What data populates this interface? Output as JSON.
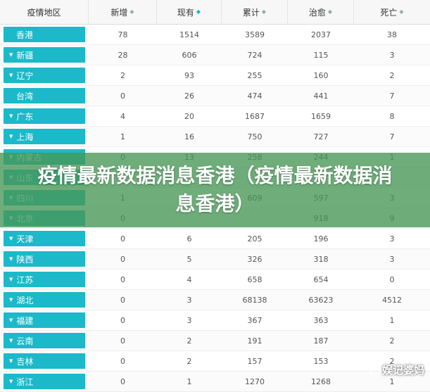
{
  "headers": [
    {
      "label": "疫情地区",
      "sort": ""
    },
    {
      "label": "新增",
      "sort": "◆"
    },
    {
      "label": "现有",
      "sort": "◆"
    },
    {
      "label": "累计",
      "sort": "◆"
    },
    {
      "label": "治愈",
      "sort": "◆"
    },
    {
      "label": "死亡",
      "sort": "◆"
    }
  ],
  "rows": [
    {
      "region": "香港",
      "arrow": "",
      "new": "78",
      "current": "1514",
      "total": "3589",
      "cured": "2037",
      "deaths": "38"
    },
    {
      "region": "新疆",
      "arrow": "▼",
      "new": "28",
      "current": "606",
      "total": "724",
      "cured": "115",
      "deaths": "3"
    },
    {
      "region": "辽宁",
      "arrow": "▼",
      "new": "2",
      "current": "93",
      "total": "255",
      "cured": "160",
      "deaths": "2"
    },
    {
      "region": "台湾",
      "arrow": "",
      "new": "0",
      "current": "26",
      "total": "474",
      "cured": "441",
      "deaths": "7"
    },
    {
      "region": "广东",
      "arrow": "▼",
      "new": "4",
      "current": "20",
      "total": "1687",
      "cured": "1659",
      "deaths": "8"
    },
    {
      "region": "上海",
      "arrow": "▼",
      "new": "1",
      "current": "16",
      "total": "750",
      "cured": "727",
      "deaths": "7"
    },
    {
      "region": "内蒙古",
      "arrow": "▼",
      "new": "0",
      "current": "13",
      "total": "258",
      "cured": "244",
      "deaths": "1"
    },
    {
      "region": "山东",
      "arrow": "▼",
      "new": "",
      "current": "",
      "total": "",
      "cured": "",
      "deaths": ""
    },
    {
      "region": "四川",
      "arrow": "▼",
      "new": "1",
      "current": "9",
      "total": "609",
      "cured": "597",
      "deaths": "3"
    },
    {
      "region": "北京",
      "arrow": "▼",
      "new": "0",
      "current": "",
      "total": "",
      "cured": "918",
      "deaths": "9"
    },
    {
      "region": "天津",
      "arrow": "▼",
      "new": "0",
      "current": "6",
      "total": "205",
      "cured": "196",
      "deaths": "3"
    },
    {
      "region": "陕西",
      "arrow": "▼",
      "new": "0",
      "current": "5",
      "total": "326",
      "cured": "318",
      "deaths": "3"
    },
    {
      "region": "江苏",
      "arrow": "▼",
      "new": "0",
      "current": "4",
      "total": "658",
      "cured": "654",
      "deaths": "0"
    },
    {
      "region": "湖北",
      "arrow": "▼",
      "new": "0",
      "current": "3",
      "total": "68138",
      "cured": "63623",
      "deaths": "4512"
    },
    {
      "region": "福建",
      "arrow": "▼",
      "new": "0",
      "current": "3",
      "total": "367",
      "cured": "363",
      "deaths": "1"
    },
    {
      "region": "云南",
      "arrow": "▼",
      "new": "0",
      "current": "2",
      "total": "191",
      "cured": "187",
      "deaths": "2"
    },
    {
      "region": "吉林",
      "arrow": "▼",
      "new": "0",
      "current": "2",
      "total": "157",
      "cured": "153",
      "deaths": "2"
    },
    {
      "region": "浙江",
      "arrow": "▼",
      "new": "0",
      "current": "1",
      "total": "1270",
      "cured": "1268",
      "deaths": "1"
    }
  ],
  "overlay": {
    "title": "疫情最新数据消息香港（疫情最新数据消息香港）"
  },
  "watermark": {
    "text": "娱记婆妈"
  },
  "colors": {
    "region_button": "#1bb9c9",
    "overlay": "#469655",
    "sort_active": "#1fb5c6"
  }
}
